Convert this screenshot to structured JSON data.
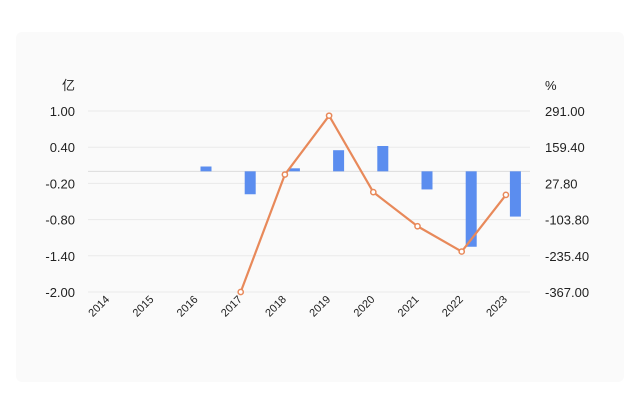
{
  "chart_data": {
    "type": "bar+line",
    "title": "",
    "categories": [
      "2014",
      "2015",
      "2016",
      "2017",
      "2018",
      "2019",
      "2020",
      "2021",
      "2022",
      "2023"
    ],
    "left_axis": {
      "unit": "亿",
      "ticks": [
        "1.00",
        "0.40",
        "-0.20",
        "-0.80",
        "-1.40",
        "-2.00"
      ],
      "ylim": [
        -2.0,
        1.0
      ]
    },
    "right_axis": {
      "unit": "%",
      "ticks": [
        "291.00",
        "159.40",
        "27.80",
        "-103.80",
        "-235.40",
        "-367.00"
      ],
      "ylim": [
        -367.0,
        291.0
      ]
    },
    "series": [
      {
        "type": "bar",
        "axis": "left",
        "color": "#5b8def",
        "values": [
          null,
          null,
          0.08,
          -0.38,
          0.05,
          0.35,
          0.42,
          -0.3,
          -1.25,
          -0.75
        ]
      },
      {
        "type": "line",
        "axis": "right",
        "color": "#e8895a",
        "values": [
          null,
          null,
          null,
          -367.0,
          60.0,
          274.0,
          -4.0,
          -128.0,
          -220.0,
          -14.0
        ]
      }
    ],
    "grid": true,
    "legend": "none"
  }
}
